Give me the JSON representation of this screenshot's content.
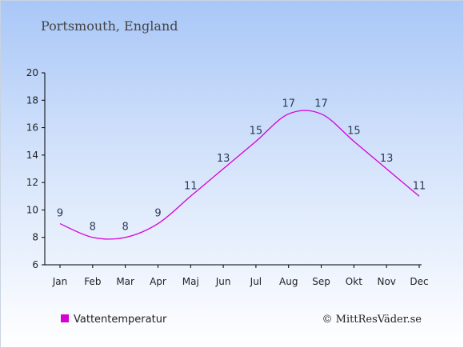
{
  "chart_data": {
    "type": "line",
    "title": "Portsmouth, England",
    "categories": [
      "Jan",
      "Feb",
      "Mar",
      "Apr",
      "Maj",
      "Jun",
      "Jul",
      "Aug",
      "Sep",
      "Okt",
      "Nov",
      "Dec"
    ],
    "series": [
      {
        "name": "Vattentemperatur",
        "values": [
          9,
          8,
          8,
          9,
          11,
          13,
          15,
          17,
          17,
          15,
          13,
          11
        ],
        "color": "#d400d4"
      }
    ],
    "ylim": [
      6,
      20
    ],
    "yticks": [
      6,
      8,
      10,
      12,
      14,
      16,
      18,
      20
    ],
    "grid": false,
    "legend_position": "bottom-left"
  },
  "credit": "© MittResVäder.se"
}
